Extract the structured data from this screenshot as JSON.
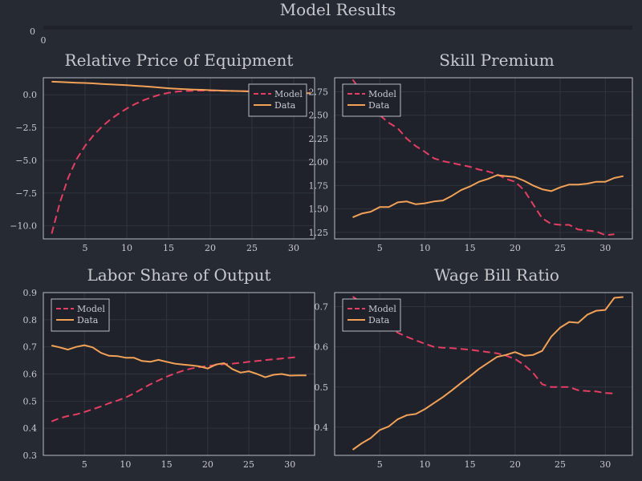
{
  "page": {
    "title": "Model Results",
    "header_axis": {
      "y_tick": "0",
      "x_tick": "0"
    }
  },
  "colors": {
    "background": "#262a33",
    "plot_bg": "#1f222a",
    "grid": "#2f343e",
    "text": "#c7c9cf",
    "axis": "#b8bcc6",
    "model": "#e63e62",
    "data": "#f2a157"
  },
  "chart_data": [
    {
      "type": "line",
      "title": "Relative Price of Equipment",
      "xlim": [
        0,
        32.5
      ],
      "ylim": [
        -11,
        1.3
      ],
      "xticks": [
        5,
        10,
        15,
        20,
        25,
        30
      ],
      "yticks": [
        0,
        -2.5,
        -5,
        -7.5,
        -10
      ],
      "ytick_labels": [
        "0.0",
        "−2.5",
        "−5.0",
        "−7.5",
        "−10.0"
      ],
      "legend": "top-right",
      "series": [
        {
          "name": "Model",
          "style": "dashed",
          "x": [
            1,
            2,
            3,
            4,
            5,
            6,
            7,
            8,
            9,
            10,
            11,
            12,
            13,
            14,
            15,
            16,
            17,
            18,
            19,
            20,
            21,
            22,
            23,
            24,
            25,
            26,
            27,
            28,
            29,
            30,
            31,
            32
          ],
          "y": [
            -10.6,
            -8.2,
            -6.3,
            -4.9,
            -3.9,
            -3.1,
            -2.45,
            -1.9,
            -1.45,
            -1.05,
            -0.7,
            -0.42,
            -0.18,
            0.02,
            0.15,
            0.24,
            0.29,
            0.31,
            0.32,
            0.32,
            0.31,
            0.3,
            0.29,
            0.28,
            0.27,
            0.26,
            0.25,
            0.25,
            0.24,
            0.24,
            0.23,
            0.22
          ]
        },
        {
          "name": "Data",
          "style": "solid",
          "x": [
            1,
            2,
            3,
            4,
            5,
            6,
            7,
            8,
            9,
            10,
            11,
            12,
            13,
            14,
            15,
            16,
            17,
            18,
            19,
            20,
            21,
            22,
            23,
            24,
            25,
            26,
            27,
            28,
            29,
            30,
            31,
            32
          ],
          "y": [
            1.0,
            0.98,
            0.95,
            0.92,
            0.9,
            0.87,
            0.83,
            0.8,
            0.77,
            0.73,
            0.69,
            0.65,
            0.6,
            0.55,
            0.5,
            0.46,
            0.43,
            0.4,
            0.38,
            0.35,
            0.33,
            0.31,
            0.29,
            0.27,
            0.25,
            0.23,
            0.21,
            0.19,
            0.17,
            0.15,
            0.13,
            0.12
          ]
        }
      ]
    },
    {
      "type": "line",
      "title": "Skill Premium",
      "xlim": [
        0,
        33
      ],
      "ylim": [
        1.18,
        2.9
      ],
      "xticks": [
        5,
        10,
        15,
        20,
        25,
        30
      ],
      "yticks": [
        1.25,
        1.5,
        1.75,
        2.0,
        2.25,
        2.5,
        2.75
      ],
      "ytick_labels": [
        "1.25",
        "1.50",
        "1.75",
        "2.00",
        "2.25",
        "2.50",
        "2.75"
      ],
      "legend": "top-left",
      "series": [
        {
          "name": "Model",
          "style": "dashed",
          "x": [
            2,
            3,
            4,
            5,
            6,
            7,
            8,
            9,
            10,
            11,
            12,
            13,
            14,
            15,
            16,
            17,
            18,
            19,
            20,
            21,
            22,
            23,
            24,
            25,
            26,
            27,
            28,
            29,
            30,
            31,
            32
          ],
          "y": [
            2.88,
            2.75,
            2.62,
            2.5,
            2.42,
            2.36,
            2.25,
            2.17,
            2.11,
            2.04,
            2.01,
            1.99,
            1.97,
            1.95,
            1.92,
            1.9,
            1.87,
            1.82,
            1.79,
            1.7,
            1.55,
            1.4,
            1.34,
            1.33,
            1.33,
            1.28,
            1.27,
            1.26,
            1.22,
            1.23,
            null
          ]
        },
        {
          "name": "Data",
          "style": "solid",
          "x": [
            2,
            3,
            4,
            5,
            6,
            7,
            8,
            9,
            10,
            11,
            12,
            13,
            14,
            15,
            16,
            17,
            18,
            19,
            20,
            21,
            22,
            23,
            24,
            25,
            26,
            27,
            28,
            29,
            30,
            31,
            32
          ],
          "y": [
            1.41,
            1.45,
            1.47,
            1.52,
            1.52,
            1.57,
            1.58,
            1.55,
            1.56,
            1.58,
            1.59,
            1.64,
            1.7,
            1.74,
            1.79,
            1.82,
            1.86,
            1.85,
            1.84,
            1.8,
            1.75,
            1.71,
            1.69,
            1.73,
            1.76,
            1.76,
            1.77,
            1.79,
            1.79,
            1.83,
            1.85
          ]
        }
      ]
    },
    {
      "type": "line",
      "title": "Labor Share of Output",
      "xlim": [
        0,
        33
      ],
      "ylim": [
        0.3,
        0.9
      ],
      "xticks": [
        5,
        10,
        15,
        20,
        25,
        30
      ],
      "yticks": [
        0.3,
        0.4,
        0.5,
        0.6,
        0.7,
        0.8,
        0.9
      ],
      "ytick_labels": [
        "0.3",
        "0.4",
        "0.5",
        "0.6",
        "0.7",
        "0.8",
        "0.9"
      ],
      "legend": "top-left",
      "series": [
        {
          "name": "Model",
          "style": "dashed",
          "x": [
            1,
            2,
            3,
            4,
            5,
            6,
            7,
            8,
            9,
            10,
            11,
            12,
            13,
            14,
            15,
            16,
            17,
            18,
            19,
            20,
            21,
            22,
            23,
            24,
            25,
            26,
            27,
            28,
            29,
            30,
            31
          ],
          "y": [
            0.425,
            0.437,
            0.445,
            0.451,
            0.46,
            0.47,
            0.48,
            0.492,
            0.502,
            0.513,
            0.528,
            0.545,
            0.562,
            0.576,
            0.59,
            0.602,
            0.612,
            0.62,
            0.625,
            0.63,
            0.633,
            0.636,
            0.638,
            0.641,
            0.645,
            0.648,
            0.651,
            0.654,
            0.657,
            0.66,
            0.663
          ]
        },
        {
          "name": "Data",
          "style": "solid",
          "x": [
            1,
            2,
            3,
            4,
            5,
            6,
            7,
            8,
            9,
            10,
            11,
            12,
            13,
            14,
            15,
            16,
            17,
            18,
            19,
            20,
            21,
            22,
            23,
            24,
            25,
            26,
            27,
            28,
            29,
            30,
            31,
            32
          ],
          "y": [
            0.705,
            0.698,
            0.69,
            0.7,
            0.706,
            0.698,
            0.678,
            0.667,
            0.666,
            0.66,
            0.66,
            0.648,
            0.645,
            0.652,
            0.645,
            0.638,
            0.635,
            0.632,
            0.628,
            0.62,
            0.635,
            0.64,
            0.618,
            0.605,
            0.61,
            0.6,
            0.588,
            0.597,
            0.6,
            0.594,
            0.595,
            0.595
          ]
        }
      ]
    },
    {
      "type": "line",
      "title": "Wage Bill Ratio",
      "xlim": [
        0,
        33
      ],
      "ylim": [
        0.33,
        0.735
      ],
      "xticks": [
        5,
        10,
        15,
        20,
        25,
        30
      ],
      "yticks": [
        0.4,
        0.5,
        0.6,
        0.7
      ],
      "ytick_labels": [
        "0.4",
        "0.5",
        "0.6",
        "0.7"
      ],
      "legend": "top-left",
      "series": [
        {
          "name": "Model",
          "style": "dashed",
          "x": [
            2,
            3,
            4,
            5,
            6,
            7,
            8,
            9,
            10,
            11,
            12,
            13,
            14,
            15,
            16,
            17,
            18,
            19,
            20,
            21,
            22,
            23,
            24,
            25,
            26,
            27,
            28,
            29,
            30,
            31
          ],
          "y": [
            0.725,
            0.71,
            0.69,
            0.67,
            0.65,
            0.635,
            0.625,
            0.616,
            0.608,
            0.6,
            0.598,
            0.597,
            0.595,
            0.593,
            0.59,
            0.587,
            0.584,
            0.578,
            0.57,
            0.555,
            0.535,
            0.507,
            0.5,
            0.5,
            0.5,
            0.492,
            0.49,
            0.489,
            0.485,
            0.484
          ]
        },
        {
          "name": "Data",
          "style": "solid",
          "x": [
            2,
            3,
            4,
            5,
            6,
            7,
            8,
            9,
            10,
            11,
            12,
            13,
            14,
            15,
            16,
            17,
            18,
            19,
            20,
            21,
            22,
            23,
            24,
            25,
            26,
            27,
            28,
            29,
            30,
            31,
            32
          ],
          "y": [
            0.344,
            0.36,
            0.373,
            0.393,
            0.402,
            0.42,
            0.43,
            0.433,
            0.445,
            0.46,
            0.475,
            0.492,
            0.51,
            0.527,
            0.545,
            0.56,
            0.575,
            0.58,
            0.587,
            0.578,
            0.58,
            0.59,
            0.625,
            0.648,
            0.662,
            0.66,
            0.68,
            0.69,
            0.692,
            0.722,
            0.724
          ]
        }
      ]
    }
  ]
}
